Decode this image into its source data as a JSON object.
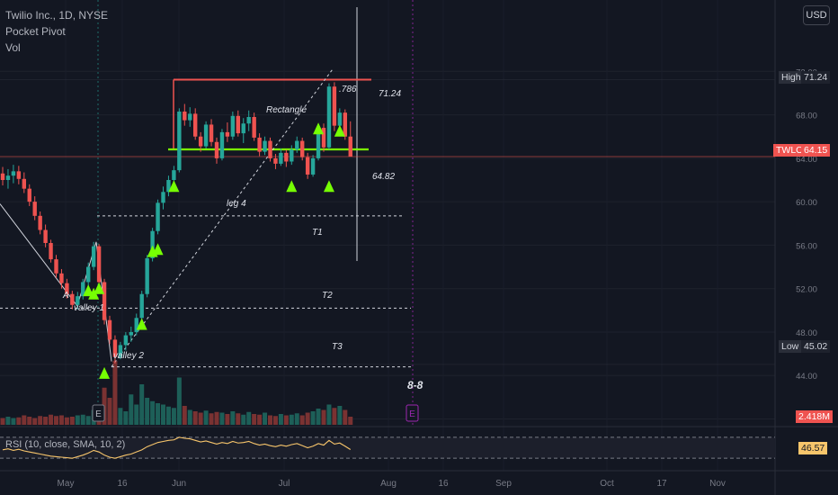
{
  "legend": {
    "title": "Twilio Inc., 1D, NYSE",
    "indicator": "Pocket Pivot",
    "volume": "Vol",
    "rsi": "RSI (10, close, SMA, 10, 2)"
  },
  "currency": "USD",
  "tags": {
    "high_label": "High",
    "high_value": "71.24",
    "ticker_label": "TWLO",
    "ticker_value": "64.15",
    "low_label": "Low",
    "low_value": "45.02",
    "volume_value": "2.418M",
    "rsi_value": "46.57"
  },
  "colors": {
    "background": "#131722",
    "up": "#26a69a",
    "down": "#ef5350",
    "signal": "#76ff03",
    "rectangle": "#ef5350",
    "support": "#7cfc00",
    "rsi": "#f7c56b",
    "earnings": "#9c27b0"
  },
  "annotations": {
    "rectangle": "Rectangle",
    "fib": ".786",
    "top_level": "71.24",
    "support_level": "64.82",
    "leg": "leg 4",
    "t1": "T1",
    "t2": "T2",
    "t3": "T3",
    "point_a": "A",
    "valley1": "valley 1",
    "valley2": "valley 2",
    "event_label": "8-8",
    "earnings_marker": "E"
  },
  "chart_data": {
    "type": "candlestick",
    "title": "Twilio Inc., 1D, NYSE",
    "y_ticks": [
      "72.00",
      "68.00",
      "64.00",
      "60.00",
      "56.00",
      "52.00",
      "48.00",
      "44.00",
      "40.00"
    ],
    "x_ticks": [
      "May",
      "16",
      "Jun",
      "Jul",
      "Aug",
      "16",
      "Sep",
      "Oct",
      "17",
      "Nov"
    ],
    "ylim": [
      38.8,
      73.6
    ],
    "candles_ohlc": [
      [
        62.6,
        63.2,
        61.5,
        62.0
      ],
      [
        62.0,
        63.0,
        61.2,
        62.4
      ],
      [
        62.4,
        63.4,
        61.7,
        62.8
      ],
      [
        62.8,
        63.3,
        61.6,
        62.1
      ],
      [
        62.1,
        62.7,
        60.8,
        61.2
      ],
      [
        61.2,
        61.6,
        59.6,
        60.0
      ],
      [
        60.0,
        60.5,
        58.3,
        58.7
      ],
      [
        58.7,
        59.1,
        57.0,
        57.4
      ],
      [
        57.4,
        57.9,
        55.8,
        56.2
      ],
      [
        56.2,
        56.5,
        54.4,
        54.7
      ],
      [
        54.7,
        55.1,
        53.0,
        53.4
      ],
      [
        53.4,
        53.8,
        52.0,
        52.5
      ],
      [
        52.5,
        52.9,
        51.1,
        51.5
      ],
      [
        51.5,
        51.8,
        50.1,
        50.5
      ],
      [
        50.5,
        51.7,
        50.1,
        51.3
      ],
      [
        51.3,
        52.9,
        51.0,
        52.6
      ],
      [
        52.6,
        54.4,
        52.2,
        54.0
      ],
      [
        54.0,
        56.3,
        53.7,
        55.9
      ],
      [
        55.9,
        56.1,
        52.3,
        52.6
      ],
      [
        52.6,
        52.9,
        48.7,
        49.1
      ],
      [
        49.1,
        49.5,
        46.9,
        47.3
      ],
      [
        47.3,
        47.7,
        45.1,
        45.7
      ],
      [
        45.7,
        47.1,
        45.5,
        46.8
      ],
      [
        46.8,
        48.0,
        46.3,
        47.7
      ],
      [
        47.7,
        48.5,
        47.1,
        48.0
      ],
      [
        48.0,
        49.7,
        47.7,
        49.3
      ],
      [
        49.3,
        51.8,
        49.0,
        51.5
      ],
      [
        51.5,
        55.1,
        51.2,
        54.8
      ],
      [
        54.8,
        57.6,
        54.5,
        57.3
      ],
      [
        57.3,
        60.2,
        57.0,
        59.9
      ],
      [
        59.9,
        61.4,
        59.3,
        60.9
      ],
      [
        60.9,
        62.4,
        60.5,
        62.0
      ],
      [
        62.0,
        63.3,
        61.7,
        62.9
      ],
      [
        62.9,
        68.6,
        62.7,
        68.3
      ],
      [
        68.3,
        69.0,
        67.0,
        67.5
      ],
      [
        67.5,
        68.7,
        66.9,
        68.1
      ],
      [
        68.1,
        68.6,
        65.7,
        66.0
      ],
      [
        66.0,
        66.4,
        64.6,
        65.1
      ],
      [
        65.1,
        67.4,
        64.9,
        67.1
      ],
      [
        67.1,
        67.6,
        65.1,
        65.5
      ],
      [
        65.5,
        65.9,
        63.5,
        64.0
      ],
      [
        64.0,
        66.7,
        63.8,
        66.4
      ],
      [
        66.4,
        67.3,
        65.5,
        66.0
      ],
      [
        66.0,
        68.3,
        65.7,
        67.9
      ],
      [
        67.9,
        68.4,
        66.0,
        66.3
      ],
      [
        66.3,
        67.7,
        65.4,
        67.2
      ],
      [
        67.2,
        68.4,
        66.5,
        67.8
      ],
      [
        67.8,
        68.2,
        65.6,
        65.9
      ],
      [
        65.9,
        66.3,
        64.2,
        64.6
      ],
      [
        64.6,
        66.0,
        64.3,
        65.6
      ],
      [
        65.6,
        65.9,
        63.7,
        64.0
      ],
      [
        64.0,
        64.4,
        63.0,
        63.5
      ],
      [
        63.5,
        64.9,
        63.3,
        64.5
      ],
      [
        64.5,
        64.8,
        63.2,
        63.7
      ],
      [
        63.7,
        65.2,
        63.4,
        64.8
      ],
      [
        64.8,
        66.0,
        64.5,
        65.6
      ],
      [
        65.6,
        65.9,
        63.8,
        64.1
      ],
      [
        64.1,
        64.5,
        62.1,
        62.5
      ],
      [
        62.5,
        64.3,
        62.3,
        64.0
      ],
      [
        64.0,
        67.1,
        63.8,
        66.8
      ],
      [
        66.8,
        67.2,
        64.6,
        65.0
      ],
      [
        65.0,
        70.9,
        64.8,
        70.6
      ],
      [
        70.6,
        71.0,
        66.5,
        67.0
      ],
      [
        67.0,
        68.6,
        66.4,
        68.2
      ],
      [
        68.2,
        68.5,
        65.7,
        66.0
      ],
      [
        66.0,
        67.4,
        64.2,
        64.15
      ]
    ],
    "candle_x_start": 3,
    "candle_x_step": 5.95,
    "volume_bars": [
      0.1,
      0.12,
      0.1,
      0.11,
      0.14,
      0.12,
      0.1,
      0.13,
      0.12,
      0.15,
      0.13,
      0.14,
      0.11,
      0.12,
      0.14,
      0.15,
      0.13,
      0.22,
      0.3,
      0.55,
      0.4,
      0.95,
      0.25,
      0.2,
      0.45,
      0.3,
      0.6,
      0.4,
      0.35,
      0.32,
      0.3,
      0.27,
      0.25,
      0.7,
      0.28,
      0.22,
      0.2,
      0.18,
      0.21,
      0.17,
      0.19,
      0.18,
      0.16,
      0.2,
      0.17,
      0.15,
      0.19,
      0.16,
      0.15,
      0.18,
      0.14,
      0.13,
      0.16,
      0.14,
      0.15,
      0.17,
      0.14,
      0.18,
      0.2,
      0.24,
      0.22,
      0.3,
      0.25,
      0.28,
      0.22,
      0.12
    ],
    "rsi_values": [
      46,
      48,
      45,
      47,
      44,
      42,
      40,
      38,
      36,
      34,
      33,
      32,
      31,
      30,
      33,
      36,
      40,
      45,
      42,
      36,
      32,
      30,
      33,
      36,
      38,
      42,
      46,
      52,
      56,
      60,
      62,
      64,
      65,
      70,
      68,
      67,
      64,
      61,
      63,
      60,
      57,
      60,
      58,
      62,
      59,
      60,
      62,
      58,
      55,
      57,
      54,
      52,
      55,
      53,
      56,
      58,
      54,
      50,
      53,
      58,
      55,
      64,
      57,
      59,
      53,
      46.57
    ],
    "levels": {
      "rectangle_top": 71.24,
      "support": 64.82,
      "t1": 58.7,
      "t2": 50.2,
      "t3": 44.8,
      "high": 71.24,
      "low": 45.02,
      "last": 64.15
    },
    "signals": [
      {
        "i": 16,
        "price": 51.8
      },
      {
        "i": 17,
        "price": 51.5
      },
      {
        "i": 18,
        "price": 52.0
      },
      {
        "i": 19,
        "price": 44.2
      },
      {
        "i": 26,
        "price": 48.7
      },
      {
        "i": 28,
        "price": 55.4
      },
      {
        "i": 29,
        "price": 55.6
      },
      {
        "i": 32,
        "price": 61.4
      },
      {
        "i": 54,
        "price": 61.4
      },
      {
        "i": 59,
        "price": 66.7
      },
      {
        "i": 61,
        "price": 61.4
      },
      {
        "i": 63,
        "price": 66.5
      }
    ]
  }
}
